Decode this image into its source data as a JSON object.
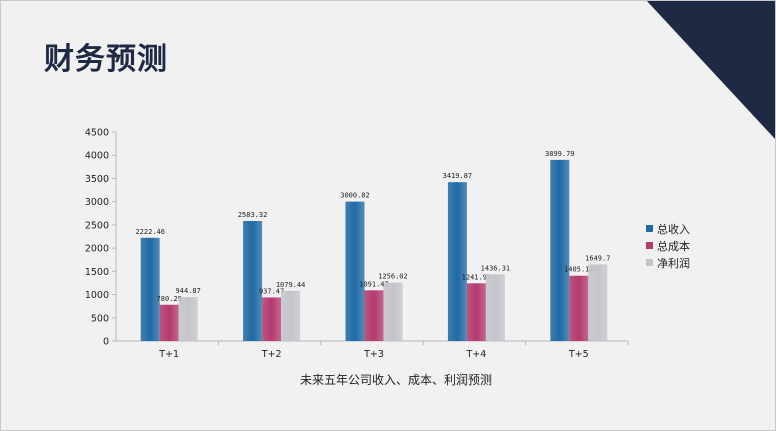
{
  "page": {
    "title": "财务预测",
    "accent_color": "#1e2a44"
  },
  "chart_data": {
    "type": "bar",
    "title": "",
    "xlabel": "未来五年公司收入、成本、利润预测",
    "ylabel": "",
    "categories": [
      "T+1",
      "T+2",
      "T+3",
      "T+4",
      "T+5"
    ],
    "ylim": [
      0,
      4500
    ],
    "yticks": [
      0,
      500,
      1000,
      1500,
      2000,
      2500,
      3000,
      3500,
      4000,
      4500
    ],
    "grid": false,
    "legend_position": "right",
    "series": [
      {
        "name": "总收入",
        "color": "#1f6aa5",
        "values": [
          2222.46,
          2583.32,
          3000.82,
          3419.87,
          3899.79
        ],
        "labels": [
          "2222.46",
          "2583.32",
          "3000.82",
          "3419.87",
          "3899.79"
        ]
      },
      {
        "name": "总成本",
        "color": "#b33a6e",
        "values": [
          780.29,
          937.47,
          1091.47,
          1241.97,
          1405.12
        ],
        "labels": [
          "780.29",
          "937.47",
          "1091.47",
          "1241.97",
          "1405.12"
        ]
      },
      {
        "name": "净利润",
        "color": "#c4c5cc",
        "values": [
          944.87,
          1079.44,
          1256.02,
          1436.31,
          1649.7
        ],
        "labels": [
          "944.87",
          "1079.44",
          "1256.02",
          "1436.31",
          "1649.7"
        ]
      }
    ]
  }
}
